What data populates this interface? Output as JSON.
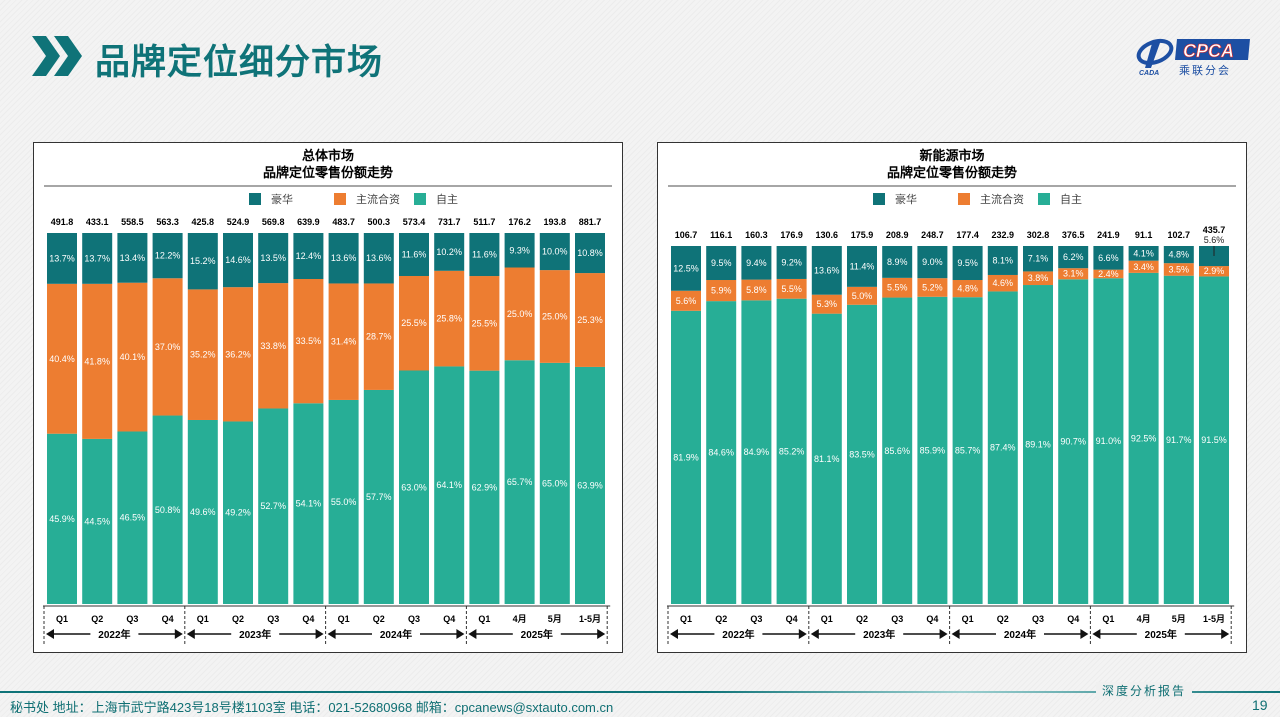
{
  "header": {
    "title": "品牌定位细分市场",
    "logo_text": "CPCA",
    "logo_subtext": "乘联分会",
    "logo_mark": "CADA"
  },
  "footer": {
    "contact": "秘书处   地址：上海市武宁路423号18号楼1103室  电话：021-52680968   邮箱：cpcanews@sxtauto.com.cn",
    "report_label": "深度分析报告",
    "page_number": "19"
  },
  "colors": {
    "luxury": "#0f7378",
    "mainstream_jv": "#ed7d31",
    "domestic": "#27ae96",
    "accent": "#0f7378"
  },
  "chart_data": [
    {
      "type": "bar",
      "stacked": true,
      "normalized": true,
      "title": "总体市场",
      "subtitle": "品牌定位零售份额走势",
      "legend": [
        "豪华",
        "主流合资",
        "自主"
      ],
      "legend_placement": "top",
      "categories": [
        "Q1",
        "Q2",
        "Q3",
        "Q4",
        "Q1",
        "Q2",
        "Q3",
        "Q4",
        "Q1",
        "Q2",
        "Q3",
        "Q4",
        "Q1",
        "4月",
        "5月",
        "1-5月"
      ],
      "groups": [
        {
          "label": "2022年",
          "count": 4
        },
        {
          "label": "2023年",
          "count": 4
        },
        {
          "label": "2024年",
          "count": 4
        },
        {
          "label": "2025年",
          "count": 4
        }
      ],
      "totals": [
        "491.8",
        "433.1",
        "558.5",
        "563.3",
        "425.8",
        "524.9",
        "569.8",
        "639.9",
        "483.7",
        "500.3",
        "573.4",
        "731.7",
        "511.7",
        "176.2",
        "193.8",
        "881.7"
      ],
      "series": [
        {
          "name": "自主",
          "values": [
            45.9,
            44.5,
            46.5,
            50.8,
            49.6,
            49.2,
            52.7,
            54.1,
            55.0,
            57.7,
            63.0,
            64.1,
            62.9,
            65.7,
            65.0,
            63.9
          ]
        },
        {
          "name": "主流合资",
          "values": [
            40.4,
            41.8,
            40.1,
            37.0,
            35.2,
            36.2,
            33.8,
            33.5,
            31.4,
            28.7,
            25.5,
            25.8,
            25.5,
            25.0,
            25.0,
            25.3
          ]
        },
        {
          "name": "豪华",
          "values": [
            13.7,
            13.7,
            13.4,
            12.2,
            15.2,
            14.6,
            13.5,
            12.4,
            13.6,
            13.6,
            11.6,
            10.2,
            11.6,
            9.3,
            10.0,
            10.8
          ]
        }
      ],
      "ylim": [
        0,
        100
      ]
    },
    {
      "type": "bar",
      "stacked": true,
      "normalized": true,
      "title": "新能源市场",
      "subtitle": "品牌定位零售份额走势",
      "legend": [
        "豪华",
        "主流合资",
        "自主"
      ],
      "legend_placement": "top",
      "categories": [
        "Q1",
        "Q2",
        "Q3",
        "Q4",
        "Q1",
        "Q2",
        "Q3",
        "Q4",
        "Q1",
        "Q2",
        "Q3",
        "Q4",
        "Q1",
        "4月",
        "5月",
        "1-5月"
      ],
      "groups": [
        {
          "label": "2022年",
          "count": 4
        },
        {
          "label": "2023年",
          "count": 4
        },
        {
          "label": "2024年",
          "count": 4
        },
        {
          "label": "2025年",
          "count": 4
        }
      ],
      "totals": [
        "106.7",
        "116.1",
        "160.3",
        "176.9",
        "130.6",
        "175.9",
        "208.9",
        "248.7",
        "177.4",
        "232.9",
        "302.8",
        "376.5",
        "241.9",
        "91.1",
        "102.7",
        "435.7"
      ],
      "series": [
        {
          "name": "自主",
          "values": [
            81.9,
            84.6,
            84.9,
            85.2,
            81.1,
            83.5,
            85.6,
            85.9,
            85.7,
            87.4,
            89.1,
            90.7,
            91.0,
            92.5,
            91.7,
            91.5
          ]
        },
        {
          "name": "主流合资",
          "values": [
            5.6,
            5.9,
            5.8,
            5.5,
            5.3,
            5.0,
            5.5,
            5.2,
            4.8,
            4.6,
            3.8,
            3.1,
            2.4,
            3.4,
            3.5,
            2.9
          ]
        },
        {
          "name": "豪华",
          "values": [
            12.5,
            9.5,
            9.4,
            9.2,
            13.6,
            11.4,
            8.9,
            9.0,
            9.5,
            8.1,
            7.1,
            6.2,
            6.6,
            4.1,
            4.8,
            5.6
          ]
        }
      ],
      "ylim": [
        0,
        100
      ]
    }
  ]
}
